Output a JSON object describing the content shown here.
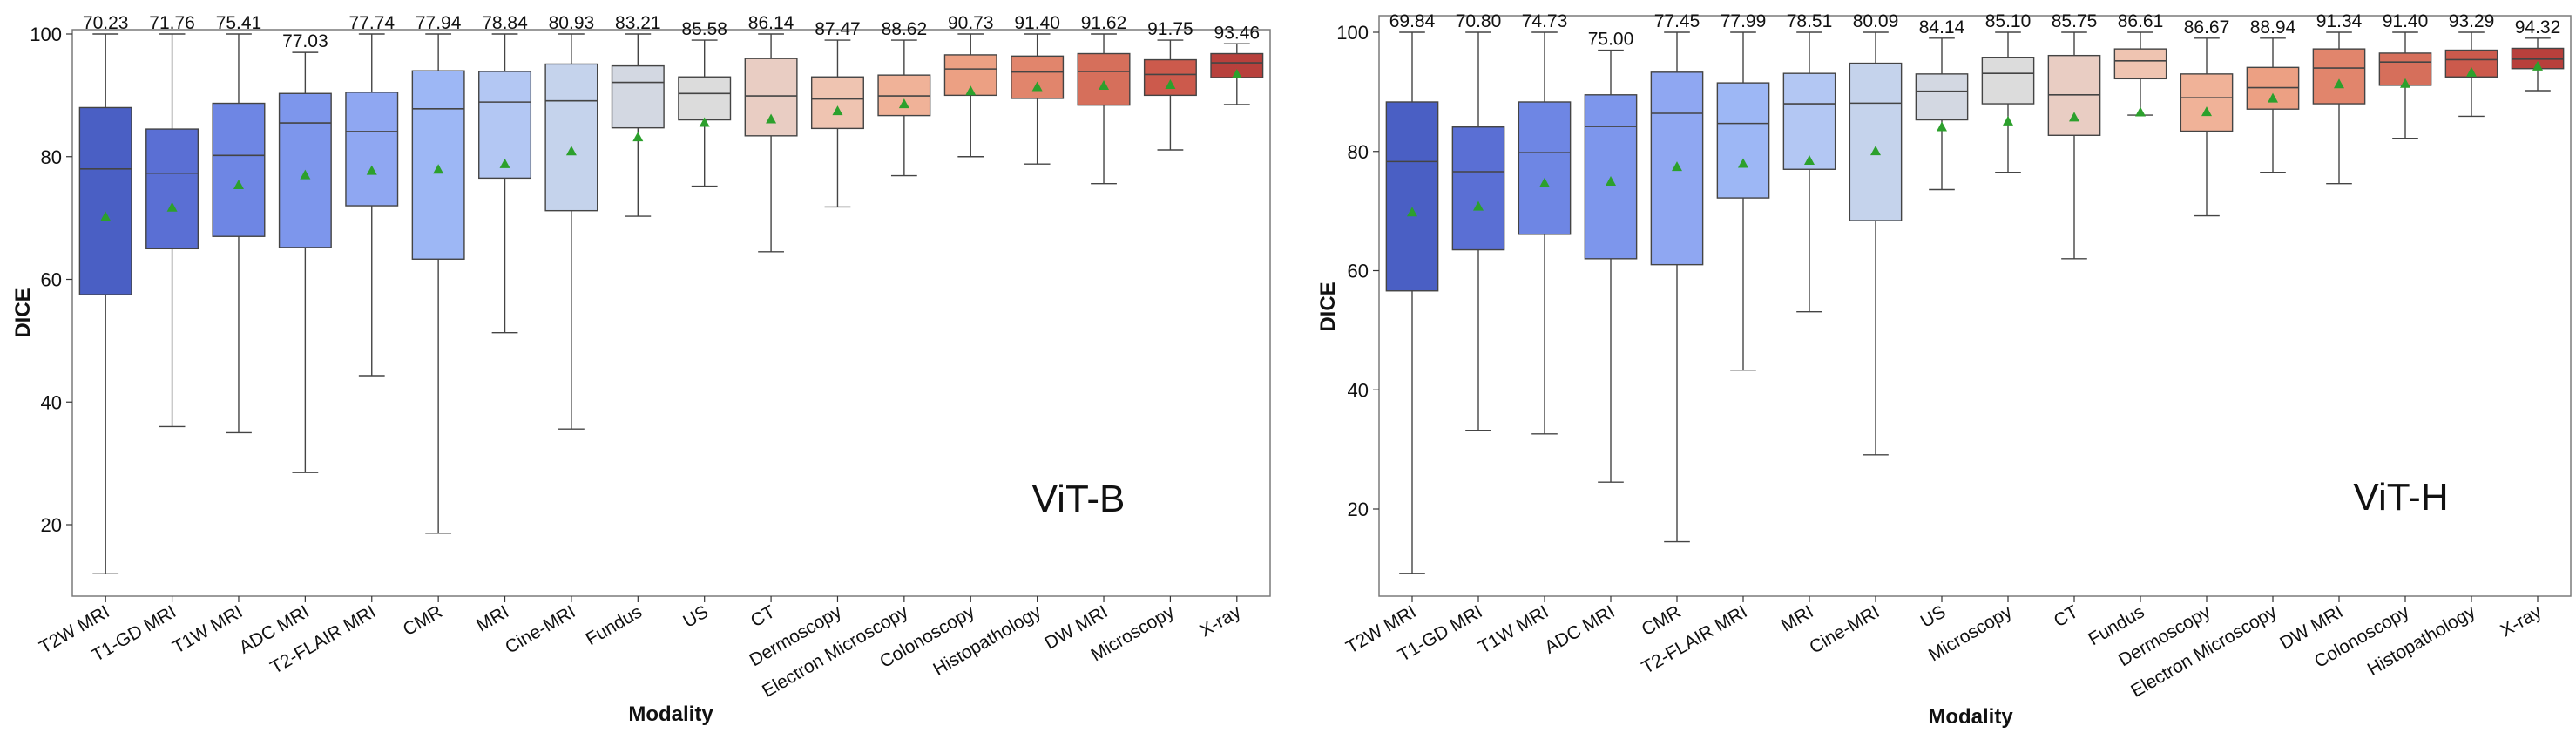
{
  "chart_data": [
    {
      "type": "box",
      "title": "",
      "panel_label": "ViT-B",
      "xlabel": "Modality",
      "ylabel": "DICE",
      "ylim": [
        7,
        101
      ],
      "yticks": [
        20,
        40,
        60,
        80,
        100
      ],
      "grid": false,
      "mean_marker": "green triangle",
      "palette": [
        "#4a5fc4",
        "#5a6fd4",
        "#6e86e4",
        "#7d96ec",
        "#8fa7f2",
        "#9db7f5",
        "#b3c7f3",
        "#c5d3ec",
        "#d3d8e2",
        "#dcdcdc",
        "#e9cdc3",
        "#efc4b1",
        "#f0b298",
        "#eca083",
        "#e1856c",
        "#d66f5b",
        "#cc5a4c",
        "#b8403c"
      ],
      "series": [
        {
          "name": "T2W MRI",
          "mean": 70.23,
          "whisker_low": 12,
          "q1": 57.5,
          "median": 78,
          "q3": 88,
          "whisker_high": 100
        },
        {
          "name": "T1-GD MRI",
          "mean": 71.76,
          "whisker_low": 36,
          "q1": 65,
          "median": 77.3,
          "q3": 84.5,
          "whisker_high": 100
        },
        {
          "name": "T1W MRI",
          "mean": 75.41,
          "whisker_low": 35,
          "q1": 67,
          "median": 80.2,
          "q3": 88.7,
          "whisker_high": 100
        },
        {
          "name": "ADC MRI",
          "mean": 77.03,
          "whisker_low": 28.5,
          "q1": 65.2,
          "median": 85.5,
          "q3": 90.3,
          "whisker_high": 97
        },
        {
          "name": "T2-FLAIR MRI",
          "mean": 77.74,
          "whisker_low": 44.3,
          "q1": 72,
          "median": 84.1,
          "q3": 90.5,
          "whisker_high": 100
        },
        {
          "name": "CMR",
          "mean": 77.94,
          "whisker_low": 18.6,
          "q1": 63.3,
          "median": 87.8,
          "q3": 94,
          "whisker_high": 100
        },
        {
          "name": "MRI",
          "mean": 78.84,
          "whisker_low": 51.3,
          "q1": 76.5,
          "median": 88.9,
          "q3": 93.9,
          "whisker_high": 100
        },
        {
          "name": "Cine-MRI",
          "mean": 80.93,
          "whisker_low": 35.6,
          "q1": 71.2,
          "median": 89.1,
          "q3": 95.1,
          "whisker_high": 100
        },
        {
          "name": "Fundus",
          "mean": 83.21,
          "whisker_low": 70.3,
          "q1": 84.7,
          "median": 92.1,
          "q3": 94.8,
          "whisker_high": 100
        },
        {
          "name": "US",
          "mean": 85.58,
          "whisker_low": 75.2,
          "q1": 86,
          "median": 90.3,
          "q3": 93,
          "whisker_high": 99
        },
        {
          "name": "CT",
          "mean": 86.14,
          "whisker_low": 64.5,
          "q1": 83.4,
          "median": 89.9,
          "q3": 96,
          "whisker_high": 100
        },
        {
          "name": "Dermoscopy",
          "mean": 87.47,
          "whisker_low": 71.8,
          "q1": 84.6,
          "median": 89.4,
          "q3": 93,
          "whisker_high": 99
        },
        {
          "name": "Electron Microscopy",
          "mean": 88.62,
          "whisker_low": 76.9,
          "q1": 86.7,
          "median": 89.9,
          "q3": 93.3,
          "whisker_high": 99
        },
        {
          "name": "Colonoscopy",
          "mean": 90.73,
          "whisker_low": 80,
          "q1": 90,
          "median": 94.3,
          "q3": 96.6,
          "whisker_high": 100
        },
        {
          "name": "Histopathology",
          "mean": 91.4,
          "whisker_low": 78.8,
          "q1": 89.5,
          "median": 93.8,
          "q3": 96.4,
          "whisker_high": 100
        },
        {
          "name": "DW MRI",
          "mean": 91.62,
          "whisker_low": 75.6,
          "q1": 88.4,
          "median": 93.9,
          "q3": 96.8,
          "whisker_high": 100
        },
        {
          "name": "Microscopy",
          "mean": 91.75,
          "whisker_low": 81.1,
          "q1": 90,
          "median": 93.4,
          "q3": 95.8,
          "whisker_high": 99
        },
        {
          "name": "X-ray",
          "mean": 93.46,
          "whisker_low": 88.5,
          "q1": 92.9,
          "median": 95.3,
          "q3": 96.8,
          "whisker_high": 98.4
        }
      ]
    },
    {
      "type": "box",
      "title": "",
      "panel_label": "ViT-H",
      "xlabel": "Modality",
      "ylabel": "DICE",
      "ylim": [
        7,
        101
      ],
      "yticks": [
        20,
        40,
        60,
        80,
        100
      ],
      "grid": false,
      "mean_marker": "green triangle",
      "palette": [
        "#4a5fc4",
        "#5a6fd4",
        "#6e86e4",
        "#7d96ec",
        "#8fa7f2",
        "#9db7f5",
        "#b3c7f3",
        "#c5d3ec",
        "#d3d8e2",
        "#dcdcdc",
        "#e9cdc3",
        "#efc4b1",
        "#f0b298",
        "#eca083",
        "#e1856c",
        "#d66f5b",
        "#cc5a4c",
        "#b8403c"
      ],
      "series": [
        {
          "name": "T2W MRI",
          "mean": 69.84,
          "whisker_low": 9.2,
          "q1": 56.6,
          "median": 78.3,
          "q3": 88.3,
          "whisker_high": 100
        },
        {
          "name": "T1-GD MRI",
          "mean": 70.8,
          "whisker_low": 33.2,
          "q1": 63.5,
          "median": 76.6,
          "q3": 84.1,
          "whisker_high": 100
        },
        {
          "name": "T1W MRI",
          "mean": 74.73,
          "whisker_low": 32.6,
          "q1": 66.1,
          "median": 79.8,
          "q3": 88.3,
          "whisker_high": 100
        },
        {
          "name": "ADC MRI",
          "mean": 75.0,
          "whisker_low": 24.5,
          "q1": 62,
          "median": 84.2,
          "q3": 89.5,
          "whisker_high": 97
        },
        {
          "name": "CMR",
          "mean": 77.45,
          "whisker_low": 14.5,
          "q1": 61,
          "median": 86.4,
          "q3": 93.3,
          "whisker_high": 100
        },
        {
          "name": "T2-FLAIR MRI",
          "mean": 77.99,
          "whisker_low": 43.3,
          "q1": 72.2,
          "median": 84.7,
          "q3": 91.5,
          "whisker_high": 100
        },
        {
          "name": "MRI",
          "mean": 78.51,
          "whisker_low": 53.1,
          "q1": 77,
          "median": 88,
          "q3": 93.1,
          "whisker_high": 100
        },
        {
          "name": "Cine-MRI",
          "mean": 80.09,
          "whisker_low": 29.1,
          "q1": 68.4,
          "median": 88.1,
          "q3": 94.8,
          "whisker_high": 100
        },
        {
          "name": "US",
          "mean": 84.14,
          "whisker_low": 73.6,
          "q1": 85.3,
          "median": 90.1,
          "q3": 93,
          "whisker_high": 99
        },
        {
          "name": "Microscopy",
          "mean": 85.1,
          "whisker_low": 76.5,
          "q1": 88,
          "median": 93.1,
          "q3": 95.8,
          "whisker_high": 100
        },
        {
          "name": "CT",
          "mean": 85.75,
          "whisker_low": 62,
          "q1": 82.7,
          "median": 89.5,
          "q3": 96.1,
          "whisker_high": 100
        },
        {
          "name": "Fundus",
          "mean": 86.61,
          "whisker_low": 86.1,
          "q1": 92.2,
          "median": 95.2,
          "q3": 97.2,
          "whisker_high": 100
        },
        {
          "name": "Dermoscopy",
          "mean": 86.67,
          "whisker_low": 69.2,
          "q1": 83.4,
          "median": 89,
          "q3": 93,
          "whisker_high": 99
        },
        {
          "name": "Electron Microscopy",
          "mean": 88.94,
          "whisker_low": 76.5,
          "q1": 87.1,
          "median": 90.7,
          "q3": 94.1,
          "whisker_high": 99
        },
        {
          "name": "DW MRI",
          "mean": 91.34,
          "whisker_low": 74.6,
          "q1": 88,
          "median": 94,
          "q3": 97.2,
          "whisker_high": 100
        },
        {
          "name": "Colonoscopy",
          "mean": 91.4,
          "whisker_low": 82.2,
          "q1": 91.1,
          "median": 95,
          "q3": 96.5,
          "whisker_high": 100
        },
        {
          "name": "Histopathology",
          "mean": 93.29,
          "whisker_low": 85.9,
          "q1": 92.5,
          "median": 95.4,
          "q3": 97,
          "whisker_high": 100
        },
        {
          "name": "X-ray",
          "mean": 94.32,
          "whisker_low": 90.2,
          "q1": 93.9,
          "median": 95.5,
          "q3": 97.3,
          "whisker_high": 99
        }
      ]
    }
  ]
}
